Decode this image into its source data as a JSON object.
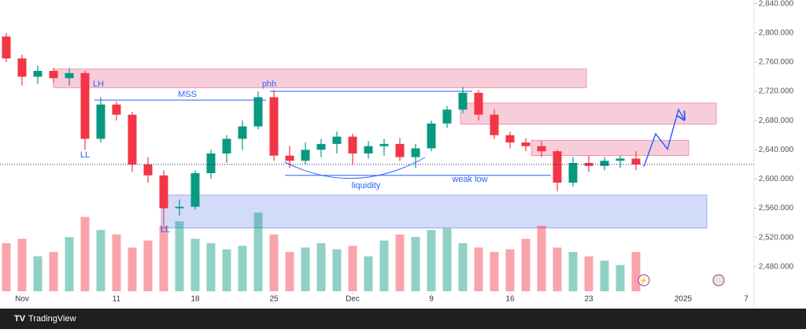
{
  "chart_data": {
    "type": "candlestick",
    "brand": "TradingView",
    "xlim": [
      -1.4,
      46.5
    ],
    "ylim": [
      2427,
      2845
    ],
    "xticks": [
      {
        "value": 0,
        "label": "Nov"
      },
      {
        "value": 6,
        "label": "11"
      },
      {
        "value": 11,
        "label": "18"
      },
      {
        "value": 16,
        "label": "25"
      },
      {
        "value": 21,
        "label": "Dec"
      },
      {
        "value": 26,
        "label": "9"
      },
      {
        "value": 31,
        "label": "16"
      },
      {
        "value": 36,
        "label": "23"
      },
      {
        "value": 42,
        "label": "2025"
      },
      {
        "value": 46,
        "label": "7"
      }
    ],
    "yticks": [
      {
        "value": 2480,
        "label": "2,480.000"
      },
      {
        "value": 2520,
        "label": "2,520.000"
      },
      {
        "value": 2560,
        "label": "2,560.000"
      },
      {
        "value": 2600,
        "label": "2,600.000"
      },
      {
        "value": 2640,
        "label": "2,640.000"
      },
      {
        "value": 2680,
        "label": "2,680.000"
      },
      {
        "value": 2720,
        "label": "2,720.000"
      },
      {
        "value": 2760,
        "label": "2,760.000"
      },
      {
        "value": 2800,
        "label": "2,800.000"
      },
      {
        "value": 2840,
        "label": "2,840.000"
      }
    ],
    "up_color": "#089981",
    "down_color": "#f23645",
    "x": [
      -1,
      0,
      1,
      2,
      3,
      4,
      5,
      6,
      7,
      8,
      9,
      10,
      11,
      12,
      13,
      14,
      15,
      16,
      17,
      18,
      19,
      20,
      21,
      22,
      23,
      24,
      25,
      26,
      27,
      28,
      29,
      30,
      31,
      32,
      33,
      34,
      35,
      36,
      37,
      38,
      39
    ],
    "open": [
      2795,
      2765,
      2740,
      2748,
      2738,
      2745,
      2655,
      2702,
      2688,
      2620,
      2605,
      2560,
      2562,
      2608,
      2635,
      2655,
      2672,
      2712,
      2632,
      2625,
      2640,
      2648,
      2658,
      2635,
      2645,
      2648,
      2630,
      2642,
      2676,
      2695,
      2718,
      2688,
      2660,
      2650,
      2645,
      2638,
      2595,
      2622,
      2618,
      2625,
      2628
    ],
    "high": [
      2800,
      2770,
      2755,
      2752,
      2752,
      2748,
      2712,
      2706,
      2692,
      2630,
      2612,
      2572,
      2612,
      2640,
      2660,
      2680,
      2720,
      2722,
      2645,
      2650,
      2655,
      2665,
      2662,
      2652,
      2655,
      2656,
      2648,
      2680,
      2700,
      2726,
      2722,
      2695,
      2665,
      2656,
      2652,
      2640,
      2630,
      2632,
      2630,
      2632,
      2638
    ],
    "low": [
      2760,
      2728,
      2730,
      2732,
      2728,
      2640,
      2650,
      2680,
      2610,
      2595,
      2537,
      2550,
      2558,
      2600,
      2622,
      2640,
      2668,
      2625,
      2615,
      2620,
      2630,
      2635,
      2620,
      2628,
      2632,
      2625,
      2615,
      2638,
      2670,
      2690,
      2680,
      2655,
      2642,
      2638,
      2630,
      2583,
      2590,
      2610,
      2612,
      2615,
      2612
    ],
    "close": [
      2765,
      2740,
      2748,
      2738,
      2745,
      2655,
      2702,
      2688,
      2620,
      2605,
      2560,
      2562,
      2608,
      2635,
      2655,
      2672,
      2712,
      2632,
      2625,
      2640,
      2648,
      2658,
      2635,
      2645,
      2648,
      2630,
      2642,
      2676,
      2695,
      2718,
      2688,
      2660,
      2650,
      2645,
      2638,
      2595,
      2622,
      2618,
      2625,
      2628,
      2620
    ],
    "volume": [
      55,
      60,
      40,
      45,
      62,
      85,
      70,
      65,
      50,
      58,
      75,
      80,
      60,
      55,
      48,
      52,
      90,
      65,
      45,
      50,
      55,
      48,
      52,
      40,
      58,
      65,
      62,
      70,
      72,
      55,
      50,
      45,
      48,
      60,
      75,
      50,
      45,
      40,
      35,
      30,
      45
    ],
    "zones": [
      {
        "x": [
          2,
          35.85
        ],
        "y": [
          2725,
          2750.5
        ],
        "color": "#f8c8d6"
      },
      {
        "x": [
          27.85,
          44.1
        ],
        "y": [
          2675,
          2704
        ],
        "color": "#f8c8d6"
      },
      {
        "x": [
          32.35,
          42.35
        ],
        "y": [
          2632,
          2653
        ],
        "color": "#f8c8d6"
      },
      {
        "x": [
          8.85,
          43.5
        ],
        "y": [
          2533,
          2578
        ],
        "color": "#cfd8fb"
      }
    ],
    "levels": [
      {
        "x": [
          4.6,
          15.5
        ],
        "y": 2708
      },
      {
        "x": [
          15.75,
          28.6
        ],
        "y": 2720
      },
      {
        "x": [
          16.7,
          33.6
        ],
        "y": 2605
      }
    ],
    "labels": [
      "LH",
      "MSS",
      "phh",
      "LL",
      "liquidity",
      "weak low",
      "LL"
    ],
    "projection": {
      "x": [
        39.5,
        40.25,
        41,
        41.7
      ],
      "y": [
        2617,
        2662,
        2641,
        2695
      ],
      "color": "#2962ff"
    }
  }
}
